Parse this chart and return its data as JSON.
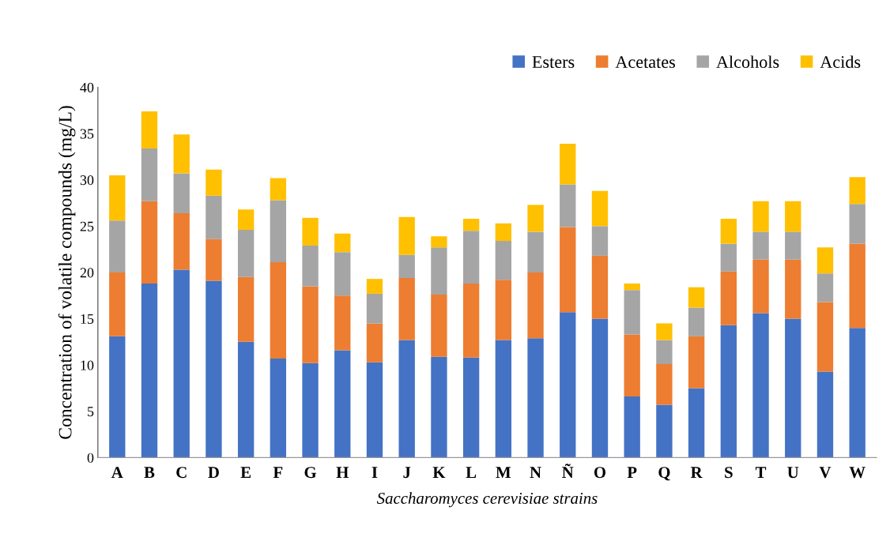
{
  "chart_data": {
    "type": "bar",
    "stacked": true,
    "xlabel": "Saccharomyces cerevisiae strains",
    "ylabel": "Concentration of volatile compounds (mg/L)",
    "categories": [
      "A",
      "B",
      "C",
      "D",
      "E",
      "F",
      "G",
      "H",
      "I",
      "J",
      "K",
      "L",
      "M",
      "N",
      "Ñ",
      "O",
      "P",
      "Q",
      "R",
      "S",
      "T",
      "U",
      "V",
      "W"
    ],
    "series": [
      {
        "name": "Esters",
        "color": "#4472c4",
        "values": [
          13.1,
          18.8,
          20.3,
          19.1,
          12.5,
          10.7,
          10.2,
          11.6,
          10.3,
          12.7,
          10.9,
          10.8,
          12.7,
          12.9,
          15.7,
          15.0,
          6.6,
          5.7,
          7.5,
          14.3,
          15.6,
          15.0,
          9.3,
          14.0
        ]
      },
      {
        "name": "Acetates",
        "color": "#ed7d31",
        "values": [
          6.9,
          8.9,
          6.1,
          4.5,
          7.0,
          10.4,
          8.3,
          5.9,
          4.2,
          6.7,
          6.7,
          8.0,
          6.5,
          7.1,
          9.2,
          6.8,
          6.7,
          4.4,
          5.6,
          5.8,
          5.8,
          6.4,
          7.5,
          9.1
        ]
      },
      {
        "name": "Alcohols",
        "color": "#a5a5a5",
        "values": [
          5.6,
          5.7,
          4.3,
          4.7,
          5.1,
          6.7,
          4.4,
          4.7,
          3.2,
          2.5,
          5.1,
          5.7,
          4.2,
          4.4,
          4.6,
          3.2,
          4.8,
          2.6,
          3.1,
          3.0,
          3.0,
          3.0,
          3.1,
          4.3
        ]
      },
      {
        "name": "Acids",
        "color": "#ffc000",
        "values": [
          4.9,
          4.0,
          4.2,
          2.8,
          2.2,
          2.4,
          3.0,
          2.0,
          1.6,
          4.1,
          1.2,
          1.3,
          1.9,
          2.9,
          4.4,
          3.8,
          0.7,
          1.8,
          2.2,
          2.7,
          3.3,
          3.3,
          2.8,
          2.9
        ]
      }
    ],
    "ylim": [
      0,
      40
    ],
    "yticks": [
      0,
      5,
      10,
      15,
      20,
      25,
      30,
      35,
      40
    ],
    "grid": false,
    "legend": "top right"
  }
}
